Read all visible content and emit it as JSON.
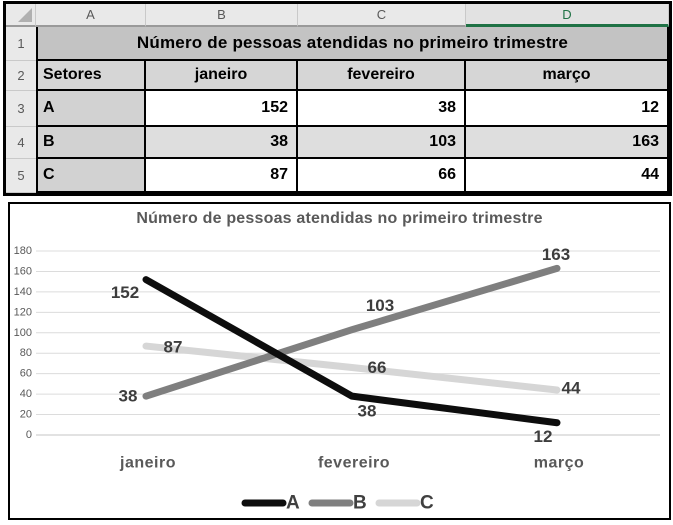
{
  "spreadsheet": {
    "column_headers": [
      "A",
      "B",
      "C",
      "D"
    ],
    "selected_column": "D",
    "row_numbers": [
      "1",
      "2",
      "3",
      "4",
      "5"
    ],
    "title": "Número de pessoas atendidas no primeiro trimestre",
    "header_row": [
      "Setores",
      "janeiro",
      "fevereiro",
      "março"
    ],
    "rows": [
      {
        "label": "A",
        "values": [
          "152",
          "38",
          "12"
        ]
      },
      {
        "label": "B",
        "values": [
          "38",
          "103",
          "163"
        ]
      },
      {
        "label": "C",
        "values": [
          "87",
          "66",
          "44"
        ]
      }
    ],
    "colors": {
      "selected_header_green": "#1f7245",
      "title_row_fill": "#c3c3c3",
      "header_row_fill": "#d6d6d6",
      "label_column_fill": "#d2d2d2",
      "banded_row_fill": "#dedede"
    }
  },
  "chart_data": {
    "type": "line",
    "title": "Número de pessoas atendidas no primeiro trimestre",
    "categories": [
      "janeiro",
      "fevereiro",
      "março"
    ],
    "series": [
      {
        "name": "A",
        "values": [
          152,
          38,
          12
        ],
        "color": "#0d0d0d"
      },
      {
        "name": "B",
        "values": [
          38,
          103,
          163
        ],
        "color": "#7f7f7f"
      },
      {
        "name": "C",
        "values": [
          87,
          66,
          44
        ],
        "color": "#d6d6d6"
      }
    ],
    "ylabel": "",
    "xlabel": "",
    "ylim": [
      0,
      180
    ],
    "ytick_step": 20,
    "grid": true,
    "legend_position": "bottom",
    "data_labels": true,
    "label_color": "#3d3d3d",
    "axis_text_color": "#595959",
    "gridline_color": "#dcdcdc"
  }
}
